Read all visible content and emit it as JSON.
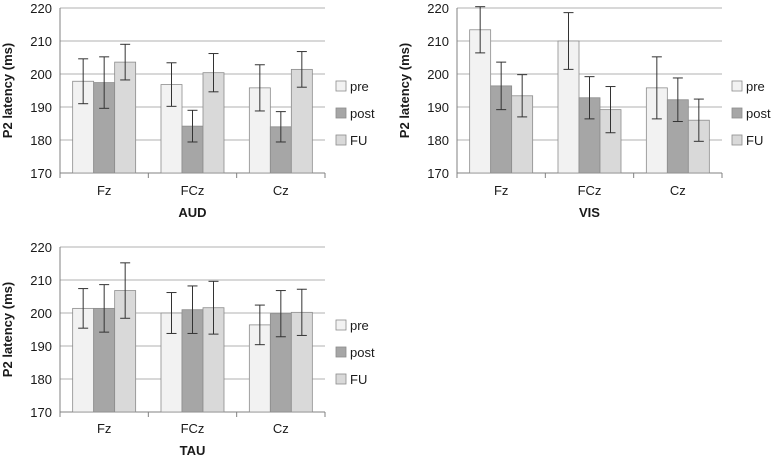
{
  "chart_data": [
    {
      "type": "bar",
      "title": "AUD",
      "xlabel": "AUD",
      "ylabel": "P2 latency (ms)",
      "ylim": [
        170,
        220
      ],
      "yticks": [
        170,
        180,
        190,
        200,
        210,
        220
      ],
      "grid": true,
      "legend": "right",
      "categories": [
        "Fz",
        "FCz",
        "Cz"
      ],
      "series": [
        {
          "name": "pre",
          "color": "#f2f2f2",
          "values": [
            197.8,
            196.8,
            195.8
          ],
          "errors": [
            6.8,
            6.6,
            7.0
          ]
        },
        {
          "name": "post",
          "color": "#a6a6a6",
          "values": [
            197.4,
            184.2,
            184.0
          ],
          "errors": [
            7.8,
            4.8,
            4.6
          ]
        },
        {
          "name": "FU",
          "color": "#d9d9d9",
          "values": [
            203.6,
            200.4,
            201.4
          ],
          "errors": [
            5.4,
            5.8,
            5.4
          ]
        }
      ]
    },
    {
      "type": "bar",
      "title": "VIS",
      "xlabel": "VIS",
      "ylabel": "P2 latency (ms)",
      "ylim": [
        170,
        220
      ],
      "yticks": [
        170,
        180,
        190,
        200,
        210,
        220
      ],
      "grid": true,
      "legend": "right",
      "categories": [
        "Fz",
        "FCz",
        "Cz"
      ],
      "series": [
        {
          "name": "pre",
          "color": "#f2f2f2",
          "values": [
            213.4,
            210.0,
            195.8
          ],
          "errors": [
            7.0,
            8.6,
            9.4
          ]
        },
        {
          "name": "post",
          "color": "#a6a6a6",
          "values": [
            196.4,
            192.8,
            192.2
          ],
          "errors": [
            7.2,
            6.4,
            6.6
          ]
        },
        {
          "name": "FU",
          "color": "#d9d9d9",
          "values": [
            193.4,
            189.2,
            186.0
          ],
          "errors": [
            6.4,
            7.0,
            6.4
          ]
        }
      ]
    },
    {
      "type": "bar",
      "title": "TAU",
      "xlabel": "TAU",
      "ylabel": "P2 latency (ms)",
      "ylim": [
        170,
        220
      ],
      "yticks": [
        170,
        180,
        190,
        200,
        210,
        220
      ],
      "grid": true,
      "legend": "right",
      "categories": [
        "Fz",
        "FCz",
        "Cz"
      ],
      "series": [
        {
          "name": "pre",
          "color": "#f2f2f2",
          "values": [
            201.4,
            200.0,
            196.4
          ],
          "errors": [
            6.0,
            6.2,
            6.0
          ]
        },
        {
          "name": "post",
          "color": "#a6a6a6",
          "values": [
            201.4,
            201.0,
            199.8
          ],
          "errors": [
            7.2,
            7.2,
            7.0
          ]
        },
        {
          "name": "FU",
          "color": "#d9d9d9",
          "values": [
            206.8,
            201.6,
            200.2
          ],
          "errors": [
            8.4,
            8.0,
            7.0
          ]
        }
      ]
    }
  ]
}
